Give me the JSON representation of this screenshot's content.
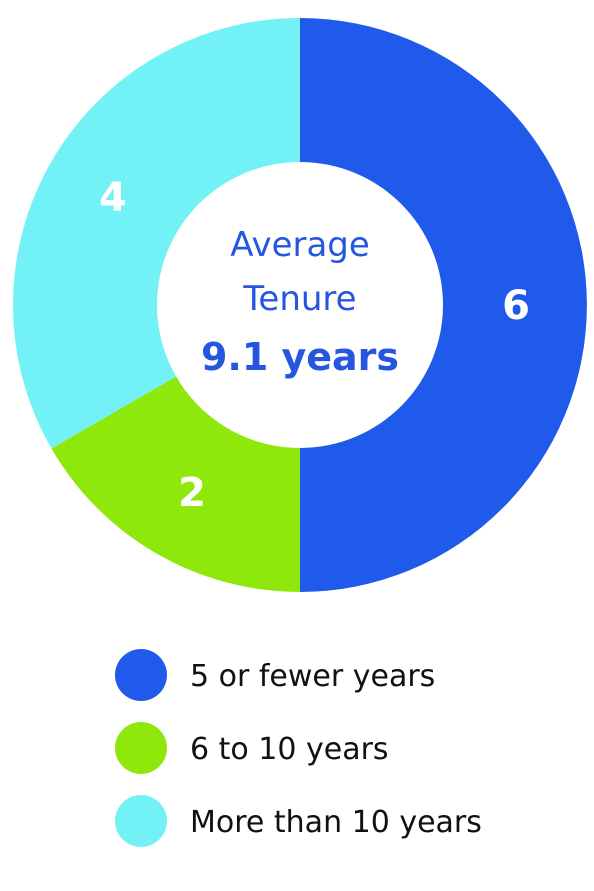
{
  "chart_data": {
    "type": "pie",
    "categories": [
      "5 or fewer years",
      "6 to 10 years",
      "More than 10 years"
    ],
    "values": [
      6,
      2,
      4
    ],
    "colors": [
      "#1f5aeb",
      "#8ee80c",
      "#72f1f7"
    ],
    "data_labels": [
      "6",
      "2",
      "4"
    ],
    "center": {
      "line1": "Average",
      "line2": "Tenure",
      "value": "9.1 years",
      "color": "#2556e0"
    },
    "legend_placement": "bottom"
  }
}
